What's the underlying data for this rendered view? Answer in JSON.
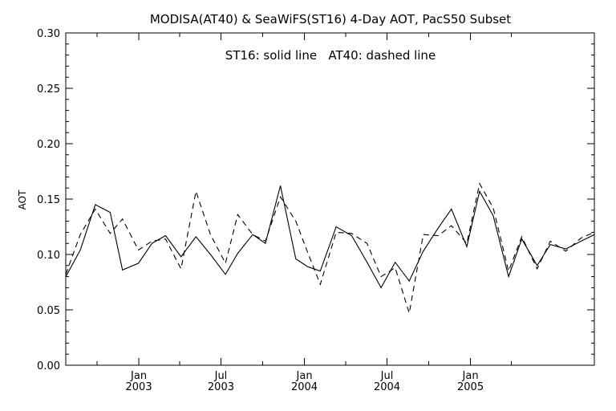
{
  "chart_data": {
    "type": "line",
    "title": "MODISA(AT40) & SeaWiFS(ST16) 4-Day AOT, PacS50 Subset",
    "annotation": "ST16: solid line   AT40: dashed line",
    "xlabel": "",
    "ylabel": "AOT",
    "ylim": [
      0.0,
      0.3
    ],
    "xlim": [
      "2002-07-24",
      "2005-10-01"
    ],
    "y_ticks": [
      "0.00",
      "0.05",
      "0.10",
      "0.15",
      "0.20",
      "0.25",
      "0.30"
    ],
    "x_ticks": [
      {
        "date": "2003-01-01",
        "month": "Jan",
        "year": "2003"
      },
      {
        "date": "2003-07-01",
        "month": "Jul",
        "year": "2003"
      },
      {
        "date": "2004-01-01",
        "month": "Jan",
        "year": "2004"
      },
      {
        "date": "2004-07-01",
        "month": "Jul",
        "year": "2004"
      },
      {
        "date": "2005-01-01",
        "month": "Jan",
        "year": "2005"
      }
    ],
    "x_minor_ticks": [
      "2002-10-01",
      "2003-04-01",
      "2003-10-01",
      "2004-04-01",
      "2004-10-01",
      "2005-04-01"
    ],
    "grid": false,
    "colors": {
      "line": "#000000",
      "axis": "#000000"
    },
    "x": [
      "2002-07-24",
      "2002-08-25",
      "2002-09-27",
      "2002-10-30",
      "2002-11-26",
      "2002-12-31",
      "2003-01-30",
      "2003-03-01",
      "2003-04-04",
      "2003-05-07",
      "2003-06-08",
      "2003-07-11",
      "2003-08-07",
      "2003-09-09",
      "2003-10-07",
      "2003-11-09",
      "2003-12-13",
      "2004-01-08",
      "2004-02-05",
      "2004-03-11",
      "2004-04-14",
      "2004-05-18",
      "2004-06-18",
      "2004-07-19",
      "2004-08-19",
      "2004-09-19",
      "2004-10-22",
      "2004-11-20",
      "2004-12-24",
      "2005-01-21",
      "2005-02-20",
      "2005-03-26",
      "2005-04-24",
      "2005-05-28",
      "2005-06-26",
      "2005-07-30",
      "2005-09-02",
      "2005-10-01"
    ],
    "series": [
      {
        "style": "solid",
        "values": [
          0.08,
          0.104,
          0.145,
          0.138,
          0.086,
          0.092,
          0.11,
          0.117,
          0.098,
          0.116,
          0.1,
          0.082,
          0.101,
          0.118,
          0.11,
          0.162,
          0.096,
          0.089,
          0.085,
          0.125,
          0.117,
          0.093,
          0.07,
          0.093,
          0.076,
          0.103,
          0.124,
          0.141,
          0.107,
          0.157,
          0.135,
          0.08,
          0.114,
          0.09,
          0.109,
          0.105,
          0.112,
          0.118
        ]
      },
      {
        "style": "dashed",
        "values": [
          0.082,
          0.118,
          0.141,
          0.119,
          0.132,
          0.104,
          0.112,
          0.114,
          0.087,
          0.157,
          0.118,
          0.092,
          0.136,
          0.118,
          0.112,
          0.152,
          0.13,
          0.102,
          0.073,
          0.12,
          0.119,
          0.11,
          0.08,
          0.088,
          0.047,
          0.118,
          0.117,
          0.126,
          0.11,
          0.164,
          0.142,
          0.085,
          0.116,
          0.087,
          0.112,
          0.103,
          0.115,
          0.12
        ]
      }
    ]
  }
}
